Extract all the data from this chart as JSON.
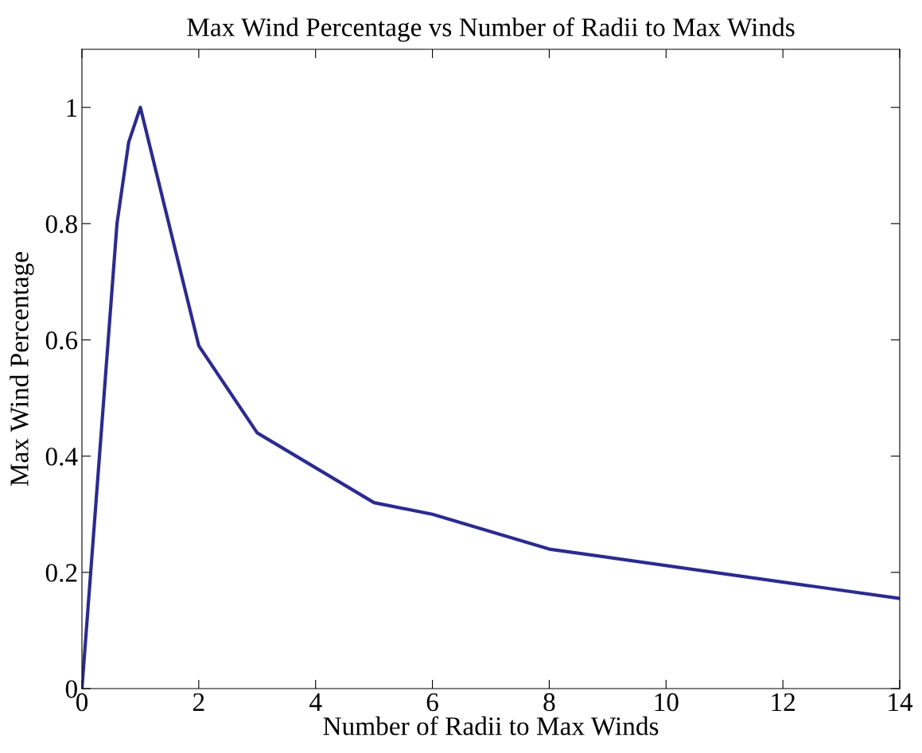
{
  "chart_data": {
    "type": "line",
    "title": "Max Wind Percentage vs Number of Radii to Max Winds",
    "xlabel": "Number of Radii to Max Winds",
    "ylabel": "Max Wind Percentage",
    "x": [
      0,
      0.6,
      0.8,
      1,
      2,
      3,
      5,
      6,
      8,
      14
    ],
    "series": [
      {
        "color": "#2b2b8f",
        "values": [
          0,
          0.8,
          0.94,
          1,
          0.59,
          0.44,
          0.32,
          0.3,
          0.24,
          0.155
        ]
      }
    ],
    "xlim": [
      0,
      14
    ],
    "xticks": [
      0,
      2,
      4,
      6,
      8,
      10,
      12,
      14
    ],
    "ylim": [
      0,
      1.1
    ],
    "yticks": [
      0,
      0.2,
      0.4,
      0.6,
      0.8,
      1
    ],
    "grid": false,
    "legend": false,
    "marker": "none",
    "line_style": "solid"
  }
}
